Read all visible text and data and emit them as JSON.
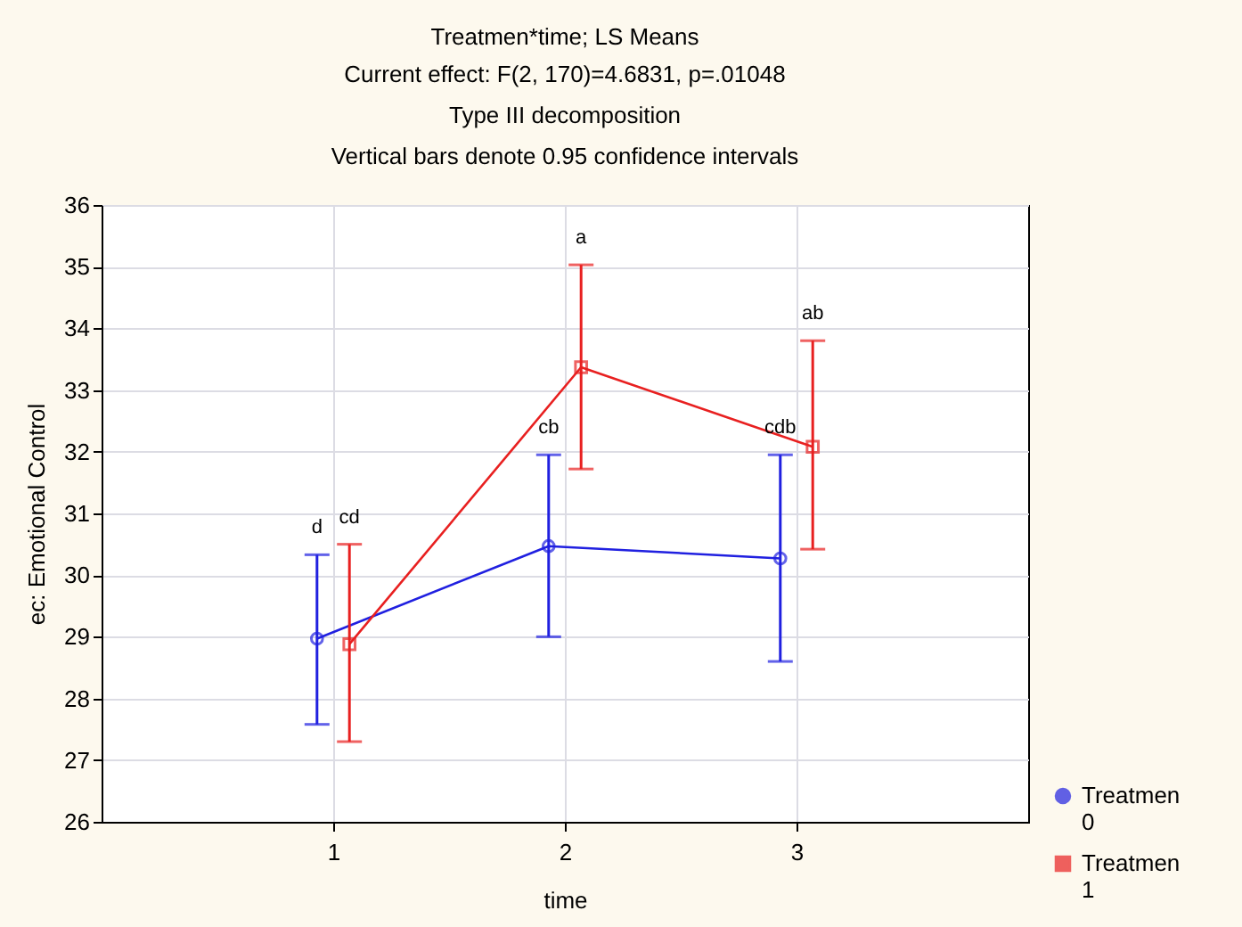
{
  "chart_data": {
    "type": "line",
    "title": "Treatmen*time; LS Means",
    "subtitle": "Current effect: F(2, 170)=4.6831, p=.01048\nType III decomposition\nVertical bars denote 0.95 confidence intervals",
    "xlabel": "time",
    "ylabel": "ec: Emotional Control",
    "series": [
      {
        "name": "Treatmen 0",
        "color": "#2020e0",
        "marker": "circle",
        "x": [
          0.93,
          1.93,
          2.93
        ],
        "values": [
          28.97,
          30.47,
          30.27
        ],
        "errors": [
          [
            27.58,
            30.33
          ],
          [
            29.0,
            31.95
          ],
          [
            28.6,
            31.95
          ]
        ]
      },
      {
        "name": "Treatmen 1",
        "color": "#e82020",
        "marker": "square",
        "x": [
          1.07,
          2.07,
          3.07
        ],
        "values": [
          28.88,
          33.37,
          32.08
        ],
        "errors": [
          [
            27.3,
            30.5
          ],
          [
            31.72,
            35.03
          ],
          [
            30.42,
            33.8
          ]
        ]
      }
    ],
    "annotations": [
      {
        "text": "d",
        "x": 0.93,
        "y": 30.33
      },
      {
        "text": "cd",
        "x": 1.07,
        "y": 30.5
      },
      {
        "text": "cb",
        "x": 1.93,
        "y": 31.95
      },
      {
        "text": "a",
        "x": 2.07,
        "y": 35.03
      },
      {
        "text": "cdb",
        "x": 2.93,
        "y": 31.95
      },
      {
        "text": "ab",
        "x": 3.07,
        "y": 33.8
      }
    ],
    "xlim": [
      0,
      4
    ],
    "xticks": [
      1,
      2,
      3
    ],
    "ylim": [
      26,
      36
    ],
    "yticks": [
      26,
      27,
      28,
      29,
      30,
      31,
      32,
      33,
      34,
      35,
      36
    ],
    "grid": true,
    "legend": "bottom right",
    "line_style": "solid"
  }
}
